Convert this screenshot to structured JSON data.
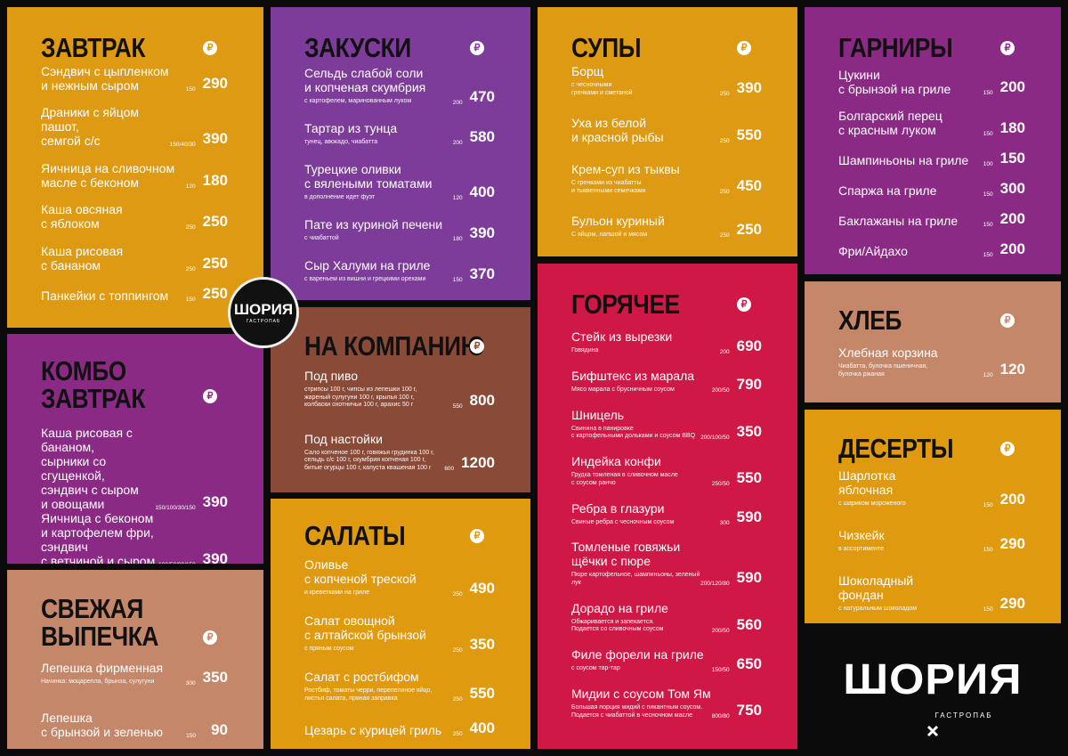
{
  "currency": "₽",
  "brand": {
    "name": "ШОРИЯ",
    "subtitle": "ГАСТРОПАБ"
  },
  "sections": [
    {
      "title": "ЗАВТРАК",
      "items": [
        {
          "name": "Сэндвич с цыпленком\nи нежным сыром",
          "weight": "150",
          "price": 290
        },
        {
          "name": "Драники с яйцом пашот,\nсемгой с/с",
          "weight": "150/40/30",
          "price": 390
        },
        {
          "name": "Яичница на сливочном\nмасле с беконом",
          "weight": "120",
          "price": 180
        },
        {
          "name": "Каша овсяная\nс яблоком",
          "weight": "250",
          "price": 250
        },
        {
          "name": "Каша рисовая\nс бананом",
          "weight": "250",
          "price": 250
        },
        {
          "name": "Панкейки с топпингом",
          "weight": "150",
          "price": 250
        }
      ]
    },
    {
      "title": "КОМБО\nЗАВТРАК",
      "items": [
        {
          "name": "Каша рисовая с бананом,\nсырники со сгущенкой,\nсэндвич с сыром\nи овощами",
          "weight": "150/100/30/150",
          "price": 390
        },
        {
          "name": "Яичница с беконом\nи картофелем фри, сэндвич\nс ветчиной и сыром",
          "weight": "180/50/80/150",
          "price": 390
        }
      ]
    },
    {
      "title": "СВЕЖАЯ\nВЫПЕЧКА",
      "items": [
        {
          "name": "Лепешка фирменная",
          "weight": "300",
          "price": 350,
          "desc": "Начинка: моцарелла, брынза, сулугуни"
        },
        {
          "name": "Лепешка\nс брынзой и зеленью",
          "weight": "150",
          "price": 90
        }
      ]
    },
    {
      "title": "ЗАКУСКИ",
      "items": [
        {
          "name": "Сельдь слабой соли\nи копченая скумбрия",
          "weight": "200",
          "price": 470,
          "desc": "с картофелем, маринованным луком"
        },
        {
          "name": "Тартар из тунца",
          "weight": "200",
          "price": 580,
          "desc": "тунец, авокадо, чиабатта"
        },
        {
          "name": "Турецкие оливки\nс вялеными томатами",
          "weight": "120",
          "price": 400,
          "desc": "в дополнение идет фуэт"
        },
        {
          "name": "Пате из куриной печени",
          "weight": "180",
          "price": 390,
          "desc": "с чиабаттой"
        },
        {
          "name": "Сыр Халуми на гриле",
          "weight": "150",
          "price": 370,
          "desc": "с вареньем из вишни и грецкими орехами"
        }
      ]
    },
    {
      "title": "НА КОМПАНИЮ",
      "items": [
        {
          "name": "Под пиво",
          "weight": "550",
          "price": 800,
          "desc": "стрипсы 100 г, чипсы из лепешки 100 г,\nжареный сулугуни 100 г, крылья 100 г,\nколбаски охотничьи 100 г, арахис 50 г"
        },
        {
          "name": "Под настойки",
          "weight": "600",
          "price": 1200,
          "desc": "Сало копченое 100 г, говяжья грудинка 100 г,\nсельдь с/с 100 г, скумбрия копченая 100 г,\nбитые огурцы 100 г, капуста квашеная 100 г"
        }
      ]
    },
    {
      "title": "САЛАТЫ",
      "items": [
        {
          "name": "Оливье\nс копченой треской",
          "weight": "250",
          "price": 490,
          "desc": "и креветками на гриле"
        },
        {
          "name": "Салат овощной\nс алтайской брынзой",
          "weight": "250",
          "price": 350,
          "desc": "с пряным соусом"
        },
        {
          "name": "Салат с ростбифом",
          "weight": "250",
          "price": 550,
          "desc": "Ростбиф, томаты черри, перепелиное яйцо,\nлистья салата, пряная заправка"
        },
        {
          "name": "Цезарь с курицей гриль",
          "weight": "250",
          "price": 400
        }
      ]
    },
    {
      "title": "СУПЫ",
      "items": [
        {
          "name": "Борщ",
          "weight": "250",
          "price": 390,
          "desc": "с чесночными\nгренками и сметаной"
        },
        {
          "name": "Уха из белой\nи красной рыбы",
          "weight": "250",
          "price": 550
        },
        {
          "name": "Крем-суп из тыквы",
          "weight": "250",
          "price": 450,
          "desc": "С гренками из чиабатты\nи тыквенными семечками"
        },
        {
          "name": "Бульон куриный",
          "weight": "250",
          "price": 250,
          "desc": "С яйцом, лапшой и мясом"
        }
      ]
    },
    {
      "title": "ГОРЯЧЕЕ",
      "items": [
        {
          "name": "Стейк из вырезки",
          "weight": "200",
          "price": 690,
          "desc": "Говядина"
        },
        {
          "name": "Бифштекс из марала",
          "weight": "200/50",
          "price": 790,
          "desc": "Мясо марала с брусничным соусом"
        },
        {
          "name": "Шницель",
          "weight": "200/100/50",
          "price": 350,
          "desc": "Свинина в панировке\nс картофельными дольками и соусом BBQ"
        },
        {
          "name": "Индейка конфи",
          "weight": "250/50",
          "price": 550,
          "desc": "Грудка томленая в сливочном масле\nс соусом ранчо"
        },
        {
          "name": "Ребра в глазури",
          "weight": "300",
          "price": 590,
          "desc": "Свиные ребра с чесночным соусом"
        },
        {
          "name": "Томленые говяжьи\nщёчки с пюре",
          "weight": "200/120/80",
          "price": 590,
          "desc": "Пюре картофельное, шампиньоны, зеленый лук"
        },
        {
          "name": "Дорадо на гриле",
          "weight": "200/50",
          "price": 560,
          "desc": "Обжаривается и запекается.\nПодается со сливочным соусом"
        },
        {
          "name": "Филе форели на гриле",
          "weight": "150/50",
          "price": 650,
          "desc": "с соусом тар-тар"
        },
        {
          "name": "Мидии с соусом Том Ям",
          "weight": "800/80",
          "price": 750,
          "desc": "Большая порция мидий с пикантным соусом.\nПодается с чиабаттой в чесночном масле"
        }
      ]
    },
    {
      "title": "ГАРНИРЫ",
      "items": [
        {
          "name": "Цукини\nс брынзой на гриле",
          "weight": "150",
          "price": 200
        },
        {
          "name": "Болгарский перец\nс красным луком",
          "weight": "150",
          "price": 180
        },
        {
          "name": "Шампиньоны на гриле",
          "weight": "100",
          "price": 150
        },
        {
          "name": "Спаржа на гриле",
          "weight": "150",
          "price": 300
        },
        {
          "name": "Баклажаны на гриле",
          "weight": "150",
          "price": 200
        },
        {
          "name": "Фри/Айдахо",
          "weight": "150",
          "price": 200
        }
      ]
    },
    {
      "title": "ХЛЕБ",
      "items": [
        {
          "name": "Хлебная корзина",
          "weight": "120",
          "price": 120,
          "desc": "Чиабатта, булочка пшеничная,\nбулочка ржаная"
        }
      ]
    },
    {
      "title": "ДЕСЕРТЫ",
      "items": [
        {
          "name": "Шарлотка\nяблочная",
          "weight": "150",
          "price": 200,
          "desc": "с шариком мороженого"
        },
        {
          "name": "Чизкейк",
          "weight": "150",
          "price": 290,
          "desc": "в ассортименте"
        },
        {
          "name": "Шоколадный\nфондан",
          "weight": "150",
          "price": 290,
          "desc": "с натуральным шоколадом"
        }
      ]
    }
  ]
}
